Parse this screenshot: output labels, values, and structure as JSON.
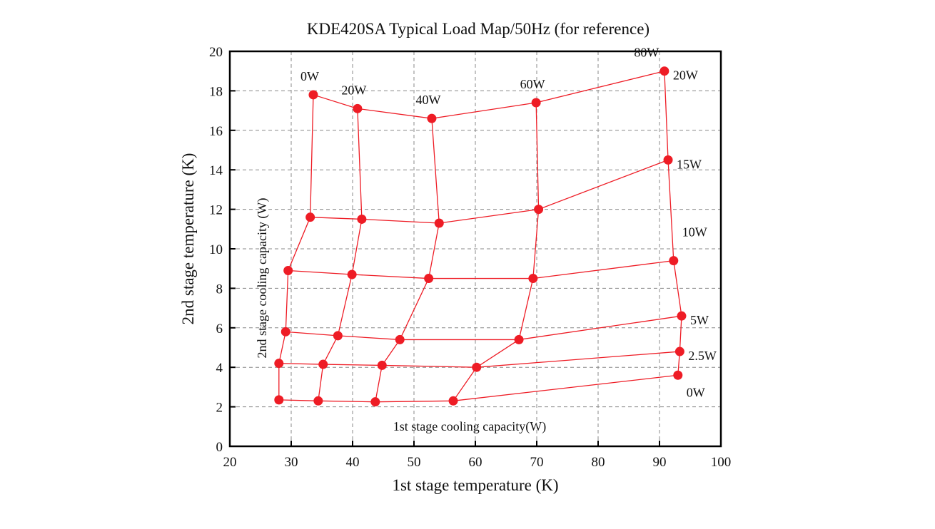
{
  "chart_data": {
    "type": "load_map",
    "title": "KDE420SA Typical Load Map/50Hz (for reference)",
    "x_label": "1st stage temperature (K)",
    "y_label": "2nd stage temperature (K)",
    "column_axis_label": "1st stage cooling capacity(W)",
    "row_axis_label": "2nd stage cooling capacity (W)",
    "columns": [
      "0W",
      "20W",
      "40W",
      "60W",
      "80W"
    ],
    "color": "#ee1c25",
    "series": [
      {
        "name": "20W",
        "x": [
          33.6,
          40.8,
          52.9,
          69.9,
          90.8
        ],
        "values": [
          17.8,
          17.1,
          16.6,
          17.4,
          19.0
        ]
      },
      {
        "name": "15W",
        "x": [
          33.1,
          41.5,
          54.1,
          70.3,
          91.4
        ],
        "values": [
          11.6,
          11.5,
          11.3,
          12.0,
          14.5
        ]
      },
      {
        "name": "10W",
        "x": [
          29.5,
          39.9,
          52.4,
          69.4,
          92.3
        ],
        "values": [
          8.9,
          8.7,
          8.5,
          8.5,
          9.4
        ]
      },
      {
        "name": "5W",
        "x": [
          29.1,
          37.6,
          47.7,
          67.1,
          93.6
        ],
        "values": [
          5.8,
          5.6,
          5.4,
          5.4,
          6.6
        ]
      },
      {
        "name": "2.5W",
        "x": [
          28.0,
          35.2,
          44.8,
          60.2,
          93.3
        ],
        "values": [
          4.2,
          4.15,
          4.1,
          4.0,
          4.8
        ]
      },
      {
        "name": "0W",
        "x": [
          28.0,
          34.4,
          43.7,
          56.4,
          93.0
        ],
        "values": [
          2.35,
          2.3,
          2.25,
          2.3,
          3.6
        ]
      }
    ],
    "xlim": [
      20,
      100
    ],
    "xticks": [
      20,
      30,
      40,
      50,
      60,
      70,
      80,
      90,
      100
    ],
    "ylim": [
      0,
      20
    ],
    "yticks": [
      0,
      2,
      4,
      6,
      8,
      10,
      12,
      14,
      16,
      18,
      20
    ],
    "grid": true
  }
}
